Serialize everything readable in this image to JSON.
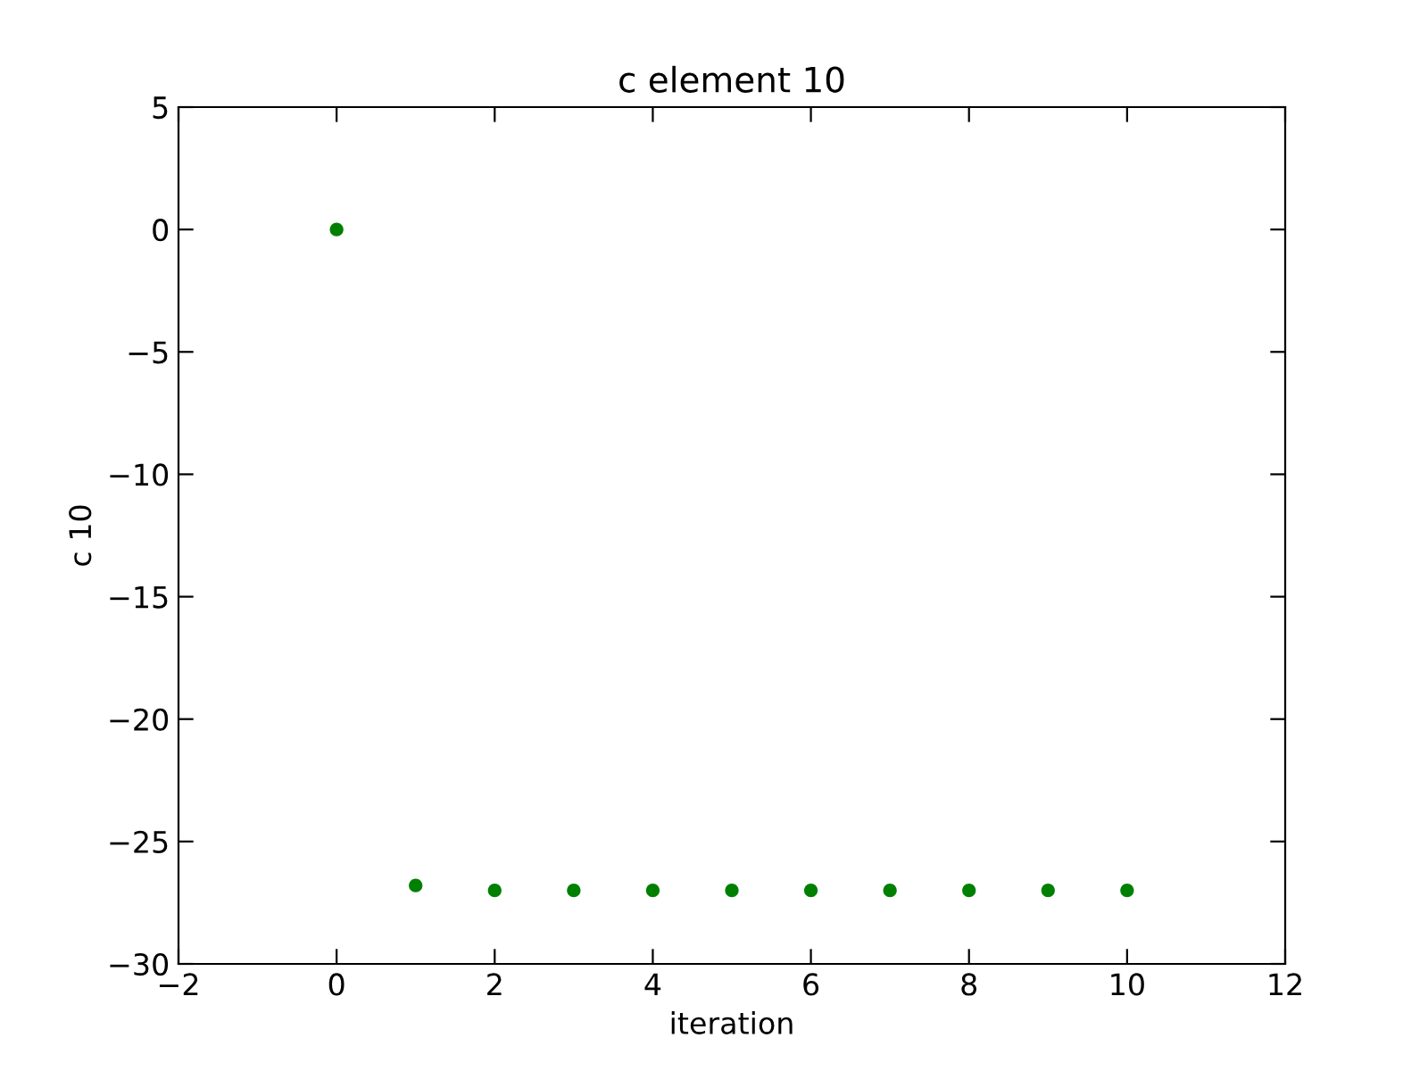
{
  "chart_data": {
    "type": "scatter",
    "title": "c element 10",
    "xlabel": "iteration",
    "ylabel": "c 10",
    "x": [
      0,
      1,
      2,
      3,
      4,
      5,
      6,
      7,
      8,
      9,
      10
    ],
    "series": [
      {
        "color": "#008000",
        "values": [
          0,
          -26.8,
          -27.0,
          -27.0,
          -27.0,
          -27.0,
          -27.0,
          -27.0,
          -27.0,
          -27.0,
          -27.0
        ]
      }
    ],
    "xlim": [
      -2,
      12
    ],
    "xticks": [
      -2,
      0,
      2,
      4,
      6,
      8,
      10,
      12
    ],
    "ylim": [
      -30,
      5
    ],
    "yticks": [
      -30,
      -25,
      -20,
      -15,
      -10,
      -5,
      0,
      5
    ],
    "marker": "circle",
    "grid": false,
    "legend": false
  }
}
